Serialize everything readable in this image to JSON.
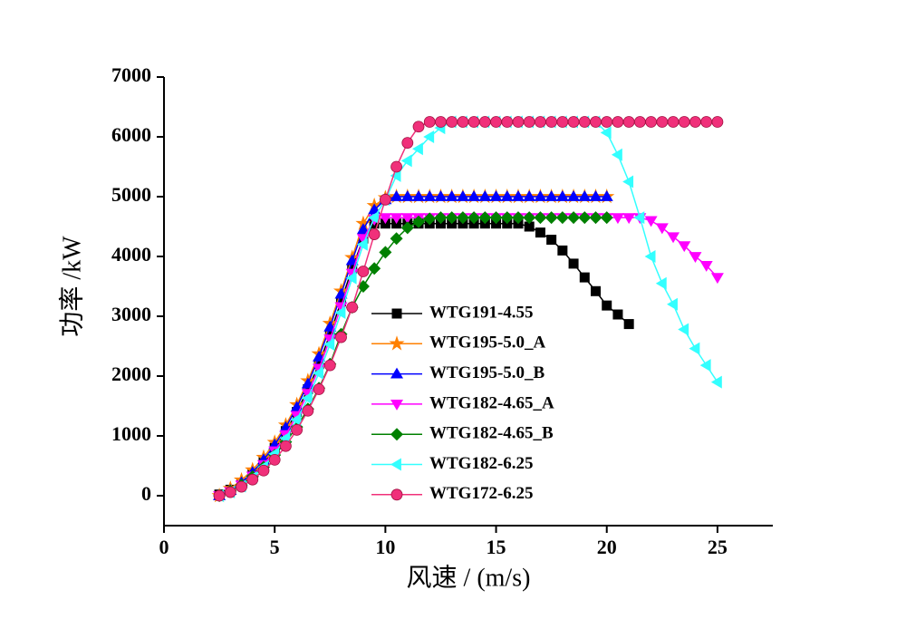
{
  "chart_data": {
    "type": "line",
    "x_label": "风速 / (m/s)",
    "y_label": "功率 /kW",
    "x": [
      2.5,
      3,
      3.5,
      4,
      4.5,
      5,
      5.5,
      6,
      6.5,
      7,
      7.5,
      8,
      8.5,
      9,
      9.5,
      10,
      10.5,
      11,
      11.5,
      12,
      12.5,
      13,
      13.5,
      14,
      14.5,
      15,
      15.5,
      16,
      16.5,
      17,
      17.5,
      18,
      18.5,
      19,
      19.5,
      20,
      20.5,
      21,
      21.5,
      22,
      22.5,
      23,
      23.5,
      24,
      24.5,
      25
    ],
    "xlim": [
      0,
      27.5
    ],
    "xticks": [
      0,
      5,
      10,
      15,
      20,
      25
    ],
    "ylim": [
      -500,
      7000
    ],
    "yticks": [
      0,
      1000,
      2000,
      3000,
      4000,
      5000,
      6000,
      7000
    ],
    "series": [
      {
        "name": "WTG191-4.55",
        "color": "#000000",
        "marker": "square",
        "values": [
          20,
          100,
          220,
          380,
          570,
          800,
          1080,
          1400,
          1780,
          2200,
          2700,
          3250,
          3800,
          4300,
          4550,
          4550,
          4550,
          4550,
          4550,
          4550,
          4550,
          4550,
          4550,
          4550,
          4550,
          4550,
          4550,
          4550,
          4500,
          4400,
          4280,
          4100,
          3880,
          3650,
          3420,
          3180,
          3030,
          2870,
          null,
          null,
          null,
          null,
          null,
          null,
          null,
          null
        ]
      },
      {
        "name": "WTG195-5.0_A",
        "color": "#ff8000",
        "marker": "star",
        "values": [
          0,
          120,
          260,
          430,
          640,
          890,
          1180,
          1520,
          1920,
          2370,
          2880,
          3420,
          3980,
          4550,
          4850,
          4980,
          5000,
          5000,
          5000,
          5000,
          5000,
          5000,
          5000,
          5000,
          5000,
          5000,
          5000,
          5000,
          5000,
          5000,
          5000,
          5000,
          5000,
          5000,
          5000,
          5000,
          null,
          null,
          null,
          null,
          null,
          null,
          null,
          null,
          null,
          null
        ]
      },
      {
        "name": "WTG195-5.0_B",
        "color": "#0000ff",
        "marker": "triangle-up",
        "values": [
          0,
          90,
          220,
          390,
          600,
          850,
          1140,
          1480,
          1870,
          2320,
          2820,
          3370,
          3930,
          4450,
          4780,
          4950,
          5000,
          5000,
          5000,
          5000,
          5000,
          5000,
          5000,
          5000,
          5000,
          5000,
          5000,
          5000,
          5000,
          5000,
          5000,
          5000,
          5000,
          5000,
          5000,
          5000,
          null,
          null,
          null,
          null,
          null,
          null,
          null,
          null,
          null,
          null
        ]
      },
      {
        "name": "WTG182-4.65_A",
        "color": "#ff00ff",
        "marker": "triangle-down",
        "values": [
          0,
          70,
          180,
          330,
          520,
          750,
          1020,
          1340,
          1710,
          2130,
          2620,
          3160,
          3720,
          4300,
          4620,
          4650,
          4650,
          4650,
          4650,
          4650,
          4650,
          4650,
          4650,
          4650,
          4650,
          4650,
          4650,
          4650,
          4650,
          4650,
          4650,
          4650,
          4650,
          4650,
          4650,
          4650,
          4650,
          4650,
          4650,
          4600,
          4480,
          4330,
          4180,
          4000,
          3850,
          3650
        ]
      },
      {
        "name": "WTG182-4.65_B",
        "color": "#008000",
        "marker": "diamond",
        "values": [
          0,
          80,
          180,
          320,
          480,
          680,
          900,
          1150,
          1450,
          1800,
          2200,
          2700,
          3150,
          3500,
          3800,
          4070,
          4300,
          4480,
          4580,
          4630,
          4650,
          4650,
          4650,
          4650,
          4650,
          4650,
          4650,
          4650,
          4650,
          4650,
          4650,
          4650,
          4650,
          4650,
          4650,
          4650,
          null,
          null,
          null,
          null,
          null,
          null,
          null,
          null,
          null,
          null
        ]
      },
      {
        "name": "WTG182-6.25",
        "color": "#33ffff",
        "marker": "triangle-left",
        "values": [
          0,
          60,
          160,
          300,
          480,
          700,
          960,
          1270,
          1630,
          2050,
          2530,
          3060,
          3640,
          4200,
          4650,
          4950,
          5350,
          5600,
          5800,
          6000,
          6150,
          6250,
          6250,
          6250,
          6250,
          6250,
          6250,
          6250,
          6250,
          6250,
          6250,
          6250,
          6250,
          6250,
          6250,
          6070,
          5700,
          5250,
          4650,
          4000,
          3550,
          3200,
          2780,
          2460,
          2180,
          1900
        ]
      },
      {
        "name": "WTG172-6.25",
        "color": "#f0307a",
        "marker": "circle",
        "values": [
          0,
          60,
          150,
          270,
          420,
          600,
          830,
          1100,
          1420,
          1780,
          2180,
          2650,
          3150,
          3750,
          4370,
          4950,
          5500,
          5900,
          6170,
          6250,
          6250,
          6250,
          6250,
          6250,
          6250,
          6250,
          6250,
          6250,
          6250,
          6250,
          6250,
          6250,
          6250,
          6250,
          6250,
          6250,
          6250,
          6250,
          6250,
          6250,
          6250,
          6250,
          6250,
          6250,
          6250,
          6250
        ]
      }
    ]
  }
}
